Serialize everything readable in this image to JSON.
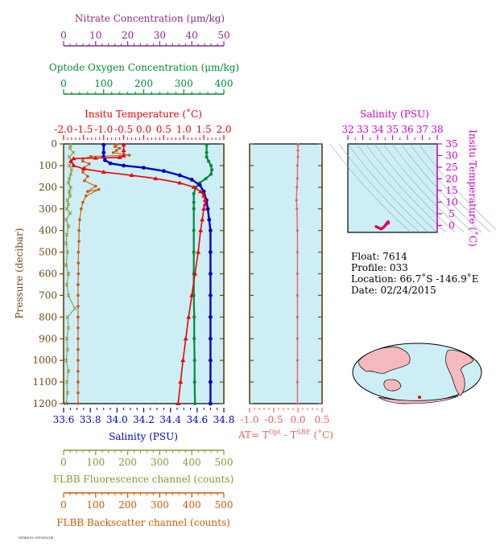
{
  "colors": {
    "nitrate": "#8b2c8b",
    "oxygen": "#008b33",
    "temperature": "#ee0000",
    "salinity": "#0000cc",
    "fluorescence": "#8b9433",
    "backscatter": "#cc5a0a",
    "at": "#ee6060",
    "ts": "#cc00cc",
    "panel_bg": "#cdeef5",
    "pres_axis": "#6b4a1a"
  },
  "axes": {
    "nitrate": {
      "title": "Nitrate Concentration (μm/kg)",
      "ticks": [
        "0",
        "10",
        "20",
        "30",
        "40",
        "50"
      ]
    },
    "oxygen": {
      "title": "Optode Oxygen Concentration (μm/kg)",
      "ticks": [
        "0",
        "100",
        "200",
        "300",
        "400"
      ]
    },
    "temperature": {
      "title": "Insitu Temperature (˚C)",
      "ticks": [
        "-2.0",
        "-1.5",
        "-1.0",
        "-0.5",
        "0.0",
        "0.5",
        "1.0",
        "1.5",
        "2.0"
      ]
    },
    "salinity": {
      "title": "Salinity (PSU)",
      "ticks": [
        "33.6",
        "33.8",
        "34.0",
        "34.2",
        "34.4",
        "34.6",
        "34.8"
      ]
    },
    "fluorescence": {
      "title": "FLBB Fluorescence channel (counts)",
      "ticks": [
        "0",
        "100",
        "200",
        "300",
        "400",
        "500"
      ]
    },
    "backscatter": {
      "title": "FLBB Backscatter channel (counts)",
      "ticks": [
        "0",
        "100",
        "200",
        "300",
        "400",
        "500"
      ]
    },
    "pressure": {
      "title": "Pressure (decibar)",
      "ticks": [
        "0",
        "100",
        "200",
        "300",
        "400",
        "500",
        "600",
        "700",
        "800",
        "900",
        "1000",
        "1100",
        "1200"
      ]
    },
    "at": {
      "title_prefix": "AT= T",
      "sup1": "Opt",
      "title_mid": " - T",
      "sup2": "SBE",
      "title_suffix": " (˚C)",
      "ticks": [
        "-1.0",
        "-0.5",
        "0.0",
        "0.5"
      ]
    },
    "ts_salinity": {
      "title": "Salinity (PSU)",
      "ticks": [
        "32",
        "33",
        "34",
        "35",
        "36",
        "37",
        "38"
      ]
    },
    "ts_temperature": {
      "title": "Insitu Temperature (˚C)",
      "ticks": [
        "0",
        "5",
        "10",
        "15",
        "20",
        "25",
        "30",
        "35"
      ]
    }
  },
  "info": {
    "float": "Float:  7614",
    "profile": "Profile:  033",
    "location": "Location:  66.7˚S  -146.9˚E",
    "date": "Date:  02/24/2015"
  },
  "footer": "7614/033 2015/02/24",
  "chart_data": [
    {
      "type": "line",
      "name": "Insitu Temperature",
      "xlim": [
        -2.0,
        2.0
      ],
      "ylim": [
        1200,
        0
      ],
      "points": [
        [
          -0.5,
          4
        ],
        [
          -0.5,
          30
        ],
        [
          -0.5,
          55
        ],
        [
          -0.6,
          62
        ],
        [
          -1.2,
          65
        ],
        [
          -1.75,
          68
        ],
        [
          -1.82,
          80
        ],
        [
          -1.75,
          100
        ],
        [
          -1.5,
          115
        ],
        [
          -1.0,
          130
        ],
        [
          -0.3,
          145
        ],
        [
          0.3,
          160
        ],
        [
          0.9,
          180
        ],
        [
          1.25,
          200
        ],
        [
          1.42,
          220
        ],
        [
          1.5,
          240
        ],
        [
          1.53,
          260
        ],
        [
          1.53,
          280
        ],
        [
          1.5,
          300
        ],
        [
          1.46,
          350
        ],
        [
          1.42,
          400
        ],
        [
          1.36,
          500
        ],
        [
          1.28,
          600
        ],
        [
          1.2,
          700
        ],
        [
          1.12,
          800
        ],
        [
          1.05,
          900
        ],
        [
          0.98,
          1000
        ],
        [
          0.92,
          1100
        ],
        [
          0.86,
          1200
        ]
      ]
    },
    {
      "type": "line",
      "name": "Salinity",
      "xlim": [
        33.6,
        34.8
      ],
      "ylim": [
        1200,
        0
      ],
      "points": [
        [
          33.9,
          4
        ],
        [
          33.9,
          40
        ],
        [
          33.9,
          60
        ],
        [
          33.91,
          75
        ],
        [
          33.95,
          90
        ],
        [
          34.05,
          100
        ],
        [
          34.2,
          110
        ],
        [
          34.35,
          125
        ],
        [
          34.47,
          145
        ],
        [
          34.56,
          165
        ],
        [
          34.62,
          190
        ],
        [
          34.65,
          220
        ],
        [
          34.67,
          260
        ],
        [
          34.68,
          300
        ],
        [
          34.69,
          350
        ],
        [
          34.7,
          400
        ],
        [
          34.7,
          500
        ],
        [
          34.7,
          600
        ],
        [
          34.7,
          700
        ],
        [
          34.7,
          800
        ],
        [
          34.7,
          900
        ],
        [
          34.7,
          1000
        ],
        [
          34.7,
          1100
        ],
        [
          34.7,
          1200
        ]
      ]
    },
    {
      "type": "line",
      "name": "Optode Oxygen Concentration",
      "xlim": [
        0,
        400
      ],
      "ylim": [
        1200,
        0
      ],
      "points": [
        [
          357,
          4
        ],
        [
          357,
          40
        ],
        [
          357,
          60
        ],
        [
          362,
          80
        ],
        [
          368,
          100
        ],
        [
          370,
          120
        ],
        [
          368,
          140
        ],
        [
          355,
          160
        ],
        [
          340,
          180
        ],
        [
          330,
          200
        ],
        [
          325,
          230
        ],
        [
          325,
          270
        ],
        [
          325,
          300
        ],
        [
          325,
          400
        ],
        [
          325,
          500
        ],
        [
          325,
          600
        ],
        [
          325,
          700
        ],
        [
          326,
          800
        ],
        [
          326,
          900
        ],
        [
          327,
          1000
        ],
        [
          327,
          1100
        ],
        [
          328,
          1200
        ]
      ]
    },
    {
      "type": "line",
      "name": "FLBB Fluorescence channel",
      "xlim": [
        0,
        500
      ],
      "ylim": [
        1200,
        0
      ],
      "points": [
        [
          22,
          4
        ],
        [
          20,
          20
        ],
        [
          30,
          40
        ],
        [
          18,
          60
        ],
        [
          25,
          80
        ],
        [
          18,
          100
        ],
        [
          25,
          120
        ],
        [
          22,
          140
        ],
        [
          18,
          160
        ],
        [
          15,
          180
        ],
        [
          22,
          200
        ],
        [
          18,
          220
        ],
        [
          20,
          240
        ],
        [
          12,
          260
        ],
        [
          15,
          280
        ],
        [
          10,
          300
        ],
        [
          20,
          320
        ],
        [
          8,
          350
        ],
        [
          15,
          380
        ],
        [
          10,
          420
        ],
        [
          8,
          460
        ],
        [
          12,
          500
        ],
        [
          8,
          560
        ],
        [
          15,
          600
        ],
        [
          10,
          650
        ],
        [
          15,
          700
        ],
        [
          35,
          760
        ],
        [
          12,
          800
        ],
        [
          15,
          850
        ],
        [
          10,
          900
        ],
        [
          12,
          950
        ],
        [
          8,
          1000
        ],
        [
          15,
          1050
        ],
        [
          10,
          1100
        ],
        [
          12,
          1150
        ],
        [
          8,
          1200
        ]
      ]
    },
    {
      "type": "line",
      "name": "FLBB Backscatter channel",
      "xlim": [
        0,
        500
      ],
      "ylim": [
        1200,
        0
      ],
      "points": [
        [
          165,
          4
        ],
        [
          160,
          12
        ],
        [
          175,
          20
        ],
        [
          165,
          30
        ],
        [
          155,
          40
        ],
        [
          205,
          52
        ],
        [
          85,
          58
        ],
        [
          60,
          68
        ],
        [
          60,
          80
        ],
        [
          80,
          92
        ],
        [
          65,
          110
        ],
        [
          60,
          130
        ],
        [
          75,
          150
        ],
        [
          65,
          170
        ],
        [
          100,
          195
        ],
        [
          75,
          220
        ],
        [
          110,
          210
        ],
        [
          70,
          240
        ],
        [
          60,
          270
        ],
        [
          55,
          300
        ],
        [
          50,
          350
        ],
        [
          48,
          400
        ],
        [
          48,
          450
        ],
        [
          46,
          500
        ],
        [
          46,
          550
        ],
        [
          46,
          600
        ],
        [
          45,
          650
        ],
        [
          45,
          700
        ],
        [
          45,
          750
        ],
        [
          45,
          800
        ],
        [
          45,
          850
        ],
        [
          45,
          900
        ],
        [
          45,
          950
        ],
        [
          45,
          1000
        ],
        [
          45,
          1050
        ],
        [
          45,
          1100
        ],
        [
          45,
          1150
        ],
        [
          45,
          1200
        ]
      ]
    },
    {
      "type": "line",
      "name": "AT",
      "xlim": [
        -1.0,
        0.5
      ],
      "ylim": [
        1200,
        0
      ],
      "points": [
        [
          0.0,
          4
        ],
        [
          0.0,
          30
        ],
        [
          0.0,
          60
        ],
        [
          -0.01,
          100
        ],
        [
          -0.01,
          160
        ],
        [
          -0.02,
          200
        ],
        [
          -0.03,
          260
        ],
        [
          -0.02,
          300
        ],
        [
          -0.01,
          400
        ],
        [
          -0.01,
          500
        ],
        [
          -0.01,
          600
        ],
        [
          -0.01,
          700
        ],
        [
          -0.01,
          800
        ],
        [
          -0.01,
          900
        ],
        [
          -0.01,
          1000
        ],
        [
          -0.01,
          1100
        ],
        [
          -0.01,
          1200
        ]
      ]
    },
    {
      "type": "scatter",
      "name": "T-S",
      "xlim": [
        32,
        38
      ],
      "ylim": [
        -3,
        35
      ],
      "points": [
        [
          33.9,
          -0.5
        ],
        [
          34.05,
          -1.0
        ],
        [
          34.2,
          -1.5
        ],
        [
          34.3,
          -1.3
        ],
        [
          34.45,
          -0.5
        ],
        [
          34.55,
          0.3
        ],
        [
          34.63,
          1.0
        ],
        [
          34.68,
          1.4
        ],
        [
          34.7,
          1.5
        ],
        [
          34.72,
          1.2
        ],
        [
          34.71,
          0.9
        ]
      ]
    }
  ]
}
